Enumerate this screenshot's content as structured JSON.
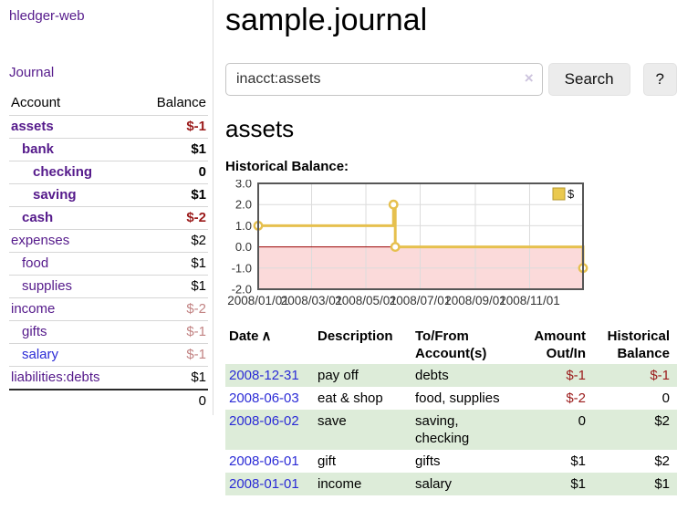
{
  "sidebar": {
    "brand": "hledger-web",
    "journal_link": "Journal",
    "accounts": {
      "col_account": "Account",
      "col_balance": "Balance",
      "rows": [
        {
          "name": "assets",
          "indent": 1,
          "bold": true,
          "balance": "$-1",
          "balance_tone": "neg-strong"
        },
        {
          "name": "bank",
          "indent": 2,
          "bold": true,
          "balance": "$1",
          "balance_tone": "pos"
        },
        {
          "name": "checking",
          "indent": 3,
          "bold": true,
          "balance": "0",
          "balance_tone": "pos"
        },
        {
          "name": "saving",
          "indent": 3,
          "bold": true,
          "balance": "$1",
          "balance_tone": "pos"
        },
        {
          "name": "cash",
          "indent": 2,
          "bold": true,
          "balance": "$-2",
          "balance_tone": "neg-strong"
        },
        {
          "name": "expenses",
          "indent": 1,
          "bold": false,
          "balance": "$2",
          "balance_tone": "pos"
        },
        {
          "name": "food",
          "indent": 2,
          "bold": false,
          "balance": "$1",
          "balance_tone": "pos"
        },
        {
          "name": "supplies",
          "indent": 2,
          "bold": false,
          "balance": "$1",
          "balance_tone": "pos"
        },
        {
          "name": "income",
          "indent": 1,
          "bold": false,
          "balance": "$-2",
          "balance_tone": "neg-muted"
        },
        {
          "name": "gifts",
          "indent": 2,
          "bold": false,
          "balance": "$-1",
          "balance_tone": "neg-muted"
        },
        {
          "name": "salary",
          "indent": 2,
          "bold": false,
          "balance": "$-1",
          "balance_tone": "neg-muted",
          "link_tone": "blue"
        },
        {
          "name": "liabilities:debts",
          "indent": 1,
          "bold": false,
          "balance": "$1",
          "balance_tone": "pos"
        }
      ],
      "total": "0"
    }
  },
  "header": {
    "title": "sample.journal"
  },
  "search": {
    "value": "inacct:assets",
    "clear_icon": "×",
    "button_label": "Search",
    "help_label": "?"
  },
  "account_page": {
    "title": "assets",
    "chart_heading": "Historical Balance:"
  },
  "chart_data": {
    "type": "line",
    "step": true,
    "title": "Historical Balance",
    "series": [
      {
        "name": "$",
        "points": [
          {
            "date": "2008-01-01",
            "value": 1
          },
          {
            "date": "2008-06-01",
            "value": 2
          },
          {
            "date": "2008-06-03",
            "value": 0
          },
          {
            "date": "2008-12-31",
            "value": -1
          }
        ]
      }
    ],
    "x_range": [
      "2008-01-01",
      "2008-12-31"
    ],
    "ylim": [
      -2,
      3
    ],
    "yticks": [
      "3.0",
      "2.0",
      "1.0",
      "0.0",
      "-1.0",
      "-2.0"
    ],
    "xticks": [
      {
        "date": "2008-01-01",
        "label": "2008/01/01"
      },
      {
        "date": "2008-03-01",
        "label": "2008/03/01"
      },
      {
        "date": "2008-05-01",
        "label": "2008/05/01"
      },
      {
        "date": "2008-07-01",
        "label": "2008/07/01"
      },
      {
        "date": "2008-09-01",
        "label": "2008/09/01"
      },
      {
        "date": "2008-11-01",
        "label": "2008/11/01"
      }
    ],
    "legend": {
      "label": "$",
      "position": "top-right"
    },
    "grid": true,
    "colors": {
      "line": "#e6c04e",
      "marker_fill": "#ffffff",
      "negative_area": "#fbdada",
      "zero_line": "#990000",
      "border": "#565656",
      "gridline": "#dcdcdc",
      "legend_fill": "#eac94f",
      "legend_border": "#b6982f"
    }
  },
  "register": {
    "sort_icon": "∧",
    "columns": [
      {
        "line1": "Date",
        "line2": "",
        "align": "left",
        "sorted": true
      },
      {
        "line1": "Description",
        "line2": "",
        "align": "left"
      },
      {
        "line1": "To/From",
        "line2": "Account(s)",
        "align": "left"
      },
      {
        "line1": "Amount",
        "line2": "Out/In",
        "align": "right"
      },
      {
        "line1": "Historical",
        "line2": "Balance",
        "align": "right"
      }
    ],
    "rows": [
      {
        "date": "2008-12-31",
        "description": "pay off",
        "accounts": "debts",
        "amount": "$-1",
        "amount_tone": "neg",
        "balance": "$-1",
        "balance_tone": "neg"
      },
      {
        "date": "2008-06-03",
        "description": "eat & shop",
        "accounts": "food, supplies",
        "amount": "$-2",
        "amount_tone": "neg",
        "balance": "0",
        "balance_tone": "pos"
      },
      {
        "date": "2008-06-02",
        "description": "save",
        "accounts": "saving, checking",
        "amount": "0",
        "amount_tone": "pos",
        "balance": "$2",
        "balance_tone": "pos"
      },
      {
        "date": "2008-06-01",
        "description": "gift",
        "accounts": "gifts",
        "amount": "$1",
        "amount_tone": "pos",
        "balance": "$2",
        "balance_tone": "pos"
      },
      {
        "date": "2008-01-01",
        "description": "income",
        "accounts": "salary",
        "amount": "$1",
        "amount_tone": "pos",
        "balance": "$1",
        "balance_tone": "pos"
      }
    ]
  },
  "colors": {
    "link_purple": "#551a8b",
    "link_blue": "#2b2bd6",
    "neg_strong": "#9b1b1b",
    "neg_muted": "#c28383",
    "row_stripe_green": "#ddecd9"
  }
}
